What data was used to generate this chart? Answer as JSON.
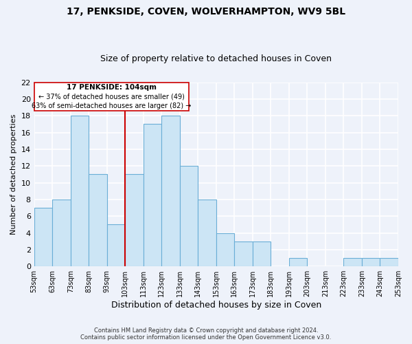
{
  "title": "17, PENKSIDE, COVEN, WOLVERHAMPTON, WV9 5BL",
  "subtitle": "Size of property relative to detached houses in Coven",
  "xlabel": "Distribution of detached houses by size in Coven",
  "ylabel": "Number of detached properties",
  "bin_edges": [
    53,
    63,
    73,
    83,
    93,
    103,
    113,
    123,
    133,
    143,
    153,
    163,
    173,
    183,
    193,
    203,
    213,
    223,
    233,
    243,
    253
  ],
  "bar_heights": [
    7,
    8,
    18,
    11,
    5,
    11,
    17,
    18,
    12,
    8,
    4,
    3,
    3,
    0,
    1,
    0,
    0,
    1,
    1,
    1
  ],
  "bar_facecolor": "#cce5f5",
  "bar_edgecolor": "#6aaed6",
  "reference_line_x": 103,
  "reference_line_color": "#cc0000",
  "annotation_title": "17 PENKSIDE: 104sqm",
  "annotation_line1": "← 37% of detached houses are smaller (49)",
  "annotation_line2": "63% of semi-detached houses are larger (82) →",
  "ylim": [
    0,
    22
  ],
  "yticks": [
    0,
    2,
    4,
    6,
    8,
    10,
    12,
    14,
    16,
    18,
    20,
    22
  ],
  "background_color": "#eef2fa",
  "grid_color": "#ffffff",
  "footer_line1": "Contains HM Land Registry data © Crown copyright and database right 2024.",
  "footer_line2": "Contains public sector information licensed under the Open Government Licence v3.0."
}
